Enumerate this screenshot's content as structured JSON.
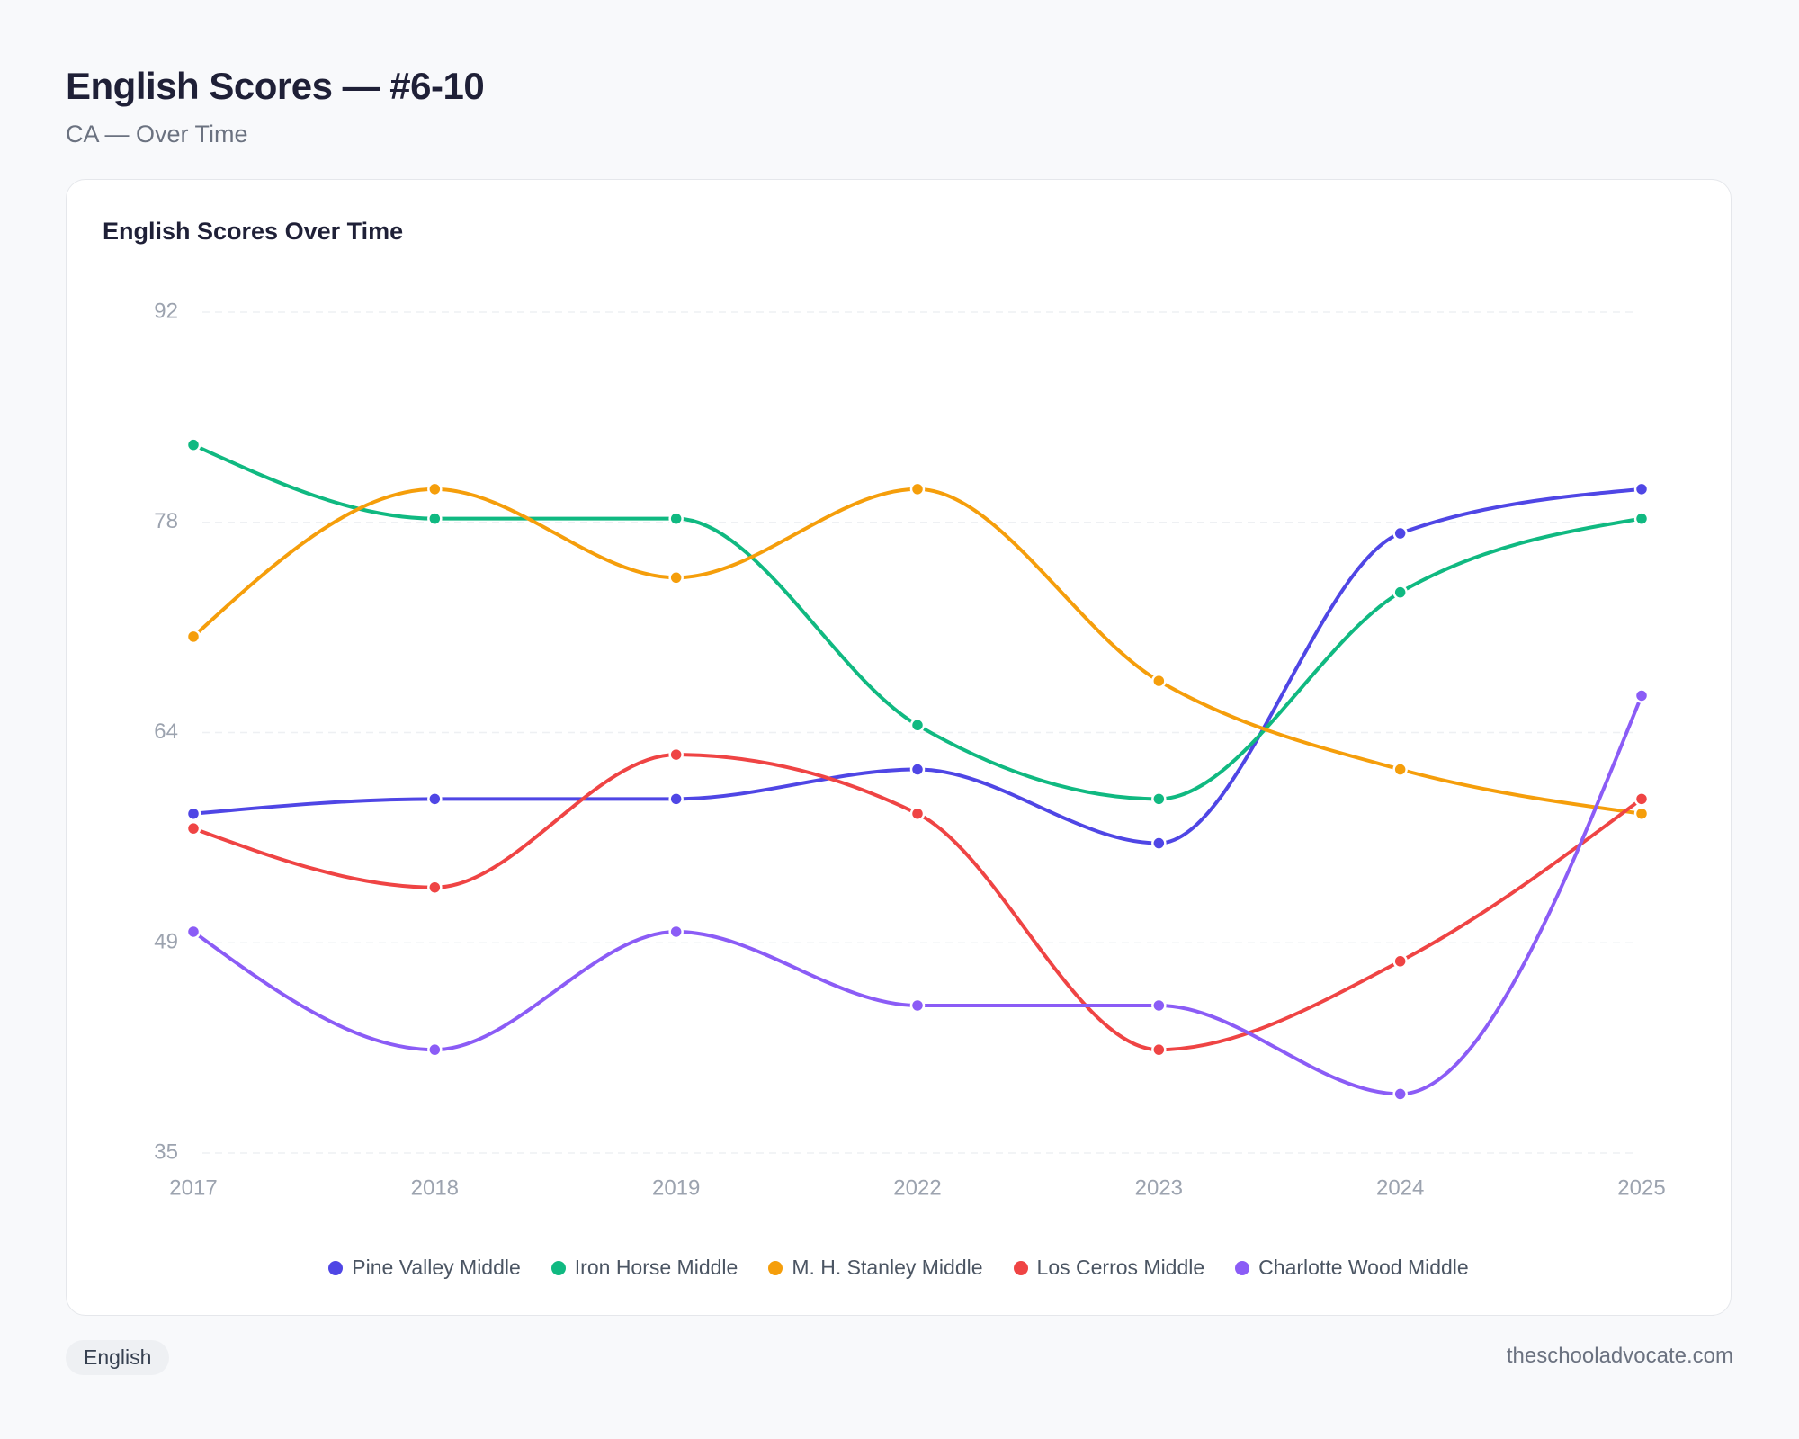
{
  "header": {
    "title": "English Scores — #6-10",
    "subtitle": "CA — Over Time"
  },
  "chart_data": {
    "type": "line",
    "title": "English Scores Over Time",
    "categories": [
      "2017",
      "2018",
      "2019",
      "2022",
      "2023",
      "2024",
      "2025"
    ],
    "series": [
      {
        "name": "Pine Valley Middle",
        "color": "#4f46e5",
        "values": [
          58,
          59,
          59,
          61,
          56,
          77,
          80
        ]
      },
      {
        "name": "Iron Horse Middle",
        "color": "#10b981",
        "values": [
          83,
          78,
          78,
          64,
          59,
          73,
          78
        ]
      },
      {
        "name": "M. H. Stanley Middle",
        "color": "#f59e0b",
        "values": [
          70,
          80,
          74,
          80,
          67,
          61,
          58
        ]
      },
      {
        "name": "Los Cerros Middle",
        "color": "#ef4444",
        "values": [
          57,
          53,
          62,
          58,
          42,
          48,
          59
        ]
      },
      {
        "name": "Charlotte Wood Middle",
        "color": "#8b5cf6",
        "values": [
          50,
          42,
          50,
          45,
          45,
          39,
          66
        ]
      }
    ],
    "ylim": [
      35,
      92
    ],
    "yticks": [
      35,
      {
        "value": 49.25,
        "label": "49"
      },
      {
        "value": 63.5,
        "label": "64"
      },
      {
        "value": 77.75,
        "label": "78"
      },
      92
    ],
    "grid": true,
    "legend": "bottom"
  },
  "footer": {
    "tag": "English",
    "source": "theschooladvocate.com"
  }
}
